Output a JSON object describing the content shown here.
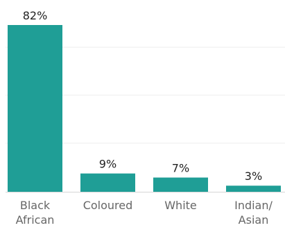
{
  "chart_data": {
    "type": "bar",
    "categories": [
      [
        "Black",
        "African"
      ],
      [
        "Coloured"
      ],
      [
        "White"
      ],
      [
        "Indian/",
        "Asian"
      ]
    ],
    "values": [
      82,
      9,
      7,
      3
    ],
    "data_labels": [
      "82%",
      "9%",
      "7%",
      "3%"
    ],
    "unit": "%",
    "ylim": [
      0,
      82
    ],
    "grid": true,
    "legend": "none",
    "title": "",
    "xlabel": "",
    "ylabel": ""
  },
  "colors": {
    "bar": "#1f9e96",
    "grid": "#ececec",
    "axis": "#d6d6d6",
    "label_text": "#222222",
    "tick_text": "#666666"
  }
}
